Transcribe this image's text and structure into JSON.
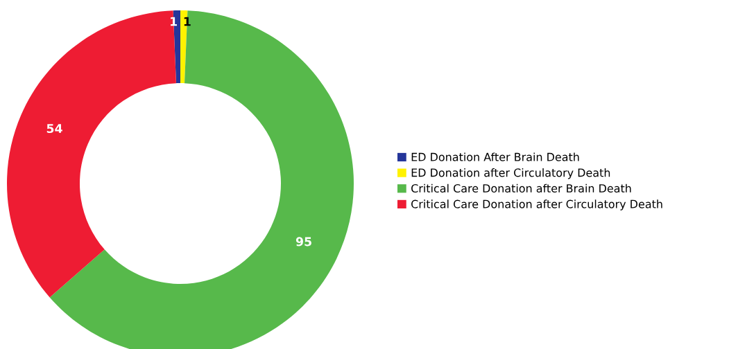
{
  "chart_data": {
    "type": "donut",
    "categories": [
      "ED Donation After Brain Death",
      "ED Donation after Circulatory Death",
      "Critical Care Donation after Brain Death",
      "Critical Care Donation after Circulatory Death"
    ],
    "values": [
      1,
      1,
      95,
      54
    ],
    "colors": [
      "#25369a",
      "#fff200",
      "#57b94b",
      "#ee1c33"
    ],
    "data_labels": true,
    "legend": "right"
  }
}
